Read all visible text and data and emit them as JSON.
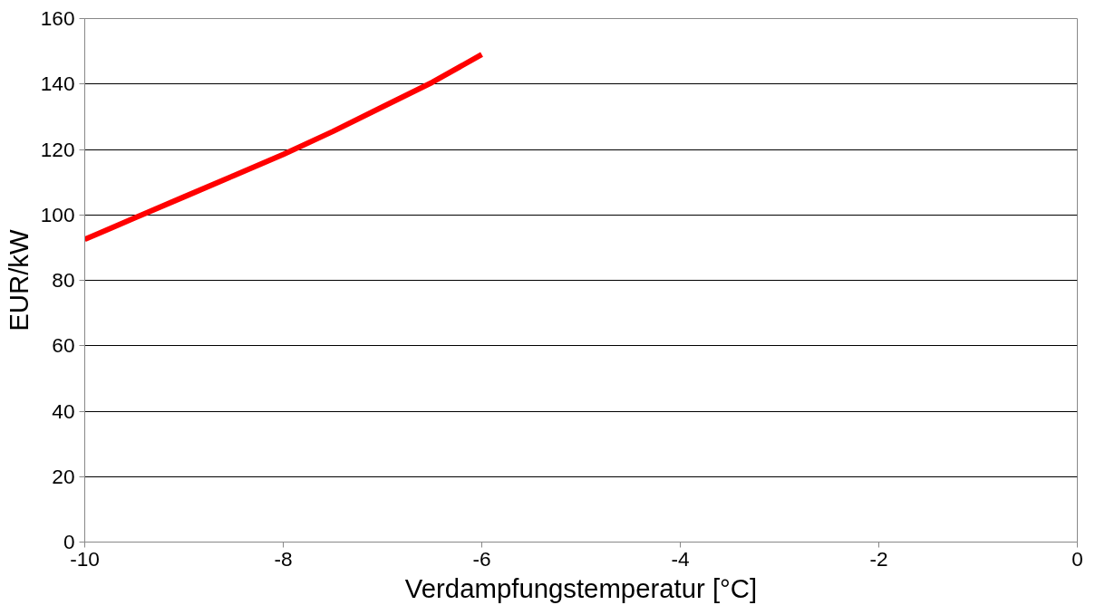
{
  "chart_data": {
    "type": "line",
    "xlabel": "Verdampfungstemperatur [°C]",
    "ylabel": "EUR/kW",
    "x": [
      -10,
      -9.5,
      -9,
      -8.5,
      -8,
      -7.5,
      -7,
      -6.5,
      -6
    ],
    "series": [
      {
        "color": "#ff0000",
        "values": [
          92.5,
          99,
          105.5,
          112,
          118.5,
          125.5,
          133,
          140.5,
          149
        ]
      }
    ],
    "xlim": [
      -10,
      0
    ],
    "xticks": [
      -10,
      -8,
      -6,
      -4,
      -2,
      0
    ],
    "ylim": [
      0,
      160
    ],
    "yticks": [
      0,
      20,
      40,
      60,
      80,
      100,
      120,
      140,
      160
    ],
    "grid": "y",
    "marker": "none",
    "line_style": "solid"
  }
}
